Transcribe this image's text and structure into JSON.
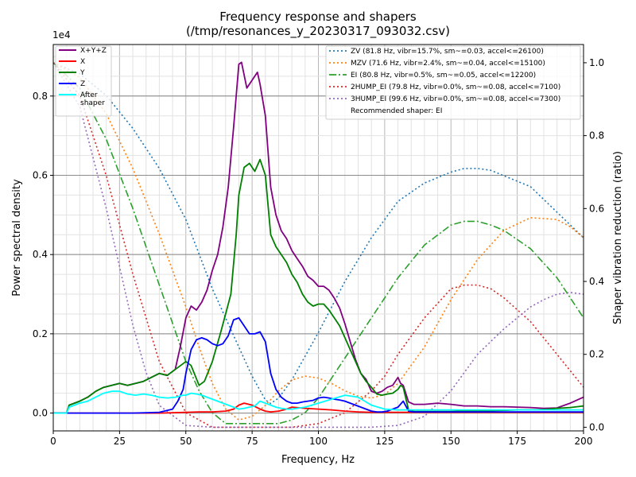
{
  "chart_data": {
    "type": "line",
    "title": "Frequency response and shapers",
    "subtitle": "(/tmp/resonances_y_20230317_093032.csv)",
    "xlabel": "Frequency, Hz",
    "ylabel": "Power spectral density",
    "y2label": "Shaper vibration reduction (ratio)",
    "y_offset_label": "1e4",
    "xlim": [
      0,
      200
    ],
    "ylim": [
      -0.045,
      0.93
    ],
    "y2lim": [
      -0.01,
      1.05
    ],
    "x_ticks": [
      0,
      25,
      50,
      75,
      100,
      125,
      150,
      175,
      200
    ],
    "y_ticks": [
      0.0,
      0.2,
      0.4,
      0.6,
      0.8
    ],
    "y_tick_labels": [
      "0.0",
      "0.2",
      "0.4",
      "0.6",
      "0.8"
    ],
    "y2_ticks": [
      0.0,
      0.2,
      0.4,
      0.6,
      0.8,
      1.0
    ],
    "y2_tick_labels": [
      "0.0",
      "0.2",
      "0.4",
      "0.6",
      "0.8",
      "1.0"
    ],
    "grid": true,
    "legend_left_placement": "top-left",
    "legend_right_placement": "top-right",
    "recommended_text": "Recommended shaper: EI",
    "psd_series": [
      {
        "name": "X+Y+Z",
        "color": "#800080",
        "dash": "solid",
        "x": [
          0,
          5,
          6,
          8,
          10,
          13,
          16,
          19,
          22,
          25,
          28,
          31,
          34,
          37,
          40,
          43,
          46,
          48,
          50,
          52,
          54,
          56,
          58,
          60,
          62,
          64,
          66,
          68,
          70,
          71,
          73,
          75,
          77,
          78,
          80,
          82,
          84,
          86,
          88,
          90,
          92,
          94,
          96,
          98,
          100,
          102,
          104,
          106,
          108,
          110,
          112,
          114,
          116,
          118,
          120,
          122,
          124,
          126,
          128,
          130,
          131,
          132,
          134,
          136,
          140,
          145,
          150,
          155,
          160,
          165,
          170,
          175,
          180,
          185,
          190,
          195,
          200
        ],
        "y": [
          0.0,
          0.0,
          0.02,
          0.025,
          0.03,
          0.04,
          0.055,
          0.065,
          0.07,
          0.075,
          0.07,
          0.075,
          0.08,
          0.09,
          0.1,
          0.095,
          0.11,
          0.17,
          0.24,
          0.27,
          0.26,
          0.28,
          0.31,
          0.36,
          0.4,
          0.47,
          0.57,
          0.72,
          0.88,
          0.885,
          0.82,
          0.84,
          0.86,
          0.83,
          0.75,
          0.57,
          0.5,
          0.46,
          0.44,
          0.41,
          0.39,
          0.37,
          0.345,
          0.335,
          0.32,
          0.32,
          0.31,
          0.29,
          0.265,
          0.225,
          0.18,
          0.135,
          0.1,
          0.085,
          0.055,
          0.05,
          0.055,
          0.065,
          0.07,
          0.09,
          0.075,
          0.07,
          0.028,
          0.022,
          0.022,
          0.025,
          0.022,
          0.018,
          0.018,
          0.016,
          0.016,
          0.015,
          0.014,
          0.012,
          0.013,
          0.025,
          0.04
        ]
      },
      {
        "name": "X",
        "color": "#ff0000",
        "dash": "solid",
        "x": [
          0,
          5,
          10,
          20,
          30,
          40,
          45,
          50,
          55,
          60,
          65,
          68,
          70,
          72,
          75,
          78,
          80,
          82,
          85,
          88,
          90,
          95,
          100,
          105,
          110,
          115,
          120,
          125,
          130,
          135,
          140,
          150,
          160,
          170,
          180,
          190,
          200
        ],
        "y": [
          0.0,
          0.0,
          0.0,
          0.0,
          0.0,
          0.0,
          0.001,
          0.002,
          0.003,
          0.003,
          0.005,
          0.01,
          0.02,
          0.025,
          0.02,
          0.01,
          0.005,
          0.003,
          0.005,
          0.01,
          0.015,
          0.012,
          0.01,
          0.008,
          0.005,
          0.003,
          0.002,
          0.002,
          0.002,
          0.002,
          0.002,
          0.002,
          0.002,
          0.002,
          0.002,
          0.002,
          0.002
        ]
      },
      {
        "name": "Y",
        "color": "#008000",
        "dash": "solid",
        "x": [
          0,
          5,
          6,
          8,
          10,
          13,
          16,
          19,
          22,
          25,
          28,
          31,
          34,
          37,
          40,
          43,
          46,
          48,
          50,
          52,
          55,
          57,
          60,
          63,
          65,
          67,
          69,
          70,
          72,
          74,
          76,
          78,
          80,
          82,
          84,
          86,
          88,
          90,
          92,
          94,
          96,
          98,
          100,
          102,
          104,
          106,
          108,
          110,
          112,
          114,
          116,
          118,
          120,
          122,
          124,
          126,
          128,
          130,
          131,
          132,
          134,
          136,
          140,
          145,
          150,
          155,
          160,
          165,
          170,
          175,
          180,
          185,
          190,
          195,
          200
        ],
        "y": [
          0.0,
          0.0,
          0.02,
          0.025,
          0.03,
          0.04,
          0.055,
          0.065,
          0.07,
          0.075,
          0.07,
          0.075,
          0.08,
          0.09,
          0.1,
          0.095,
          0.11,
          0.12,
          0.13,
          0.12,
          0.07,
          0.08,
          0.13,
          0.2,
          0.25,
          0.3,
          0.45,
          0.55,
          0.62,
          0.63,
          0.61,
          0.64,
          0.6,
          0.45,
          0.42,
          0.4,
          0.38,
          0.35,
          0.33,
          0.3,
          0.28,
          0.27,
          0.275,
          0.275,
          0.26,
          0.24,
          0.22,
          0.19,
          0.16,
          0.13,
          0.1,
          0.08,
          0.065,
          0.048,
          0.045,
          0.048,
          0.05,
          0.06,
          0.07,
          0.065,
          0.008,
          0.004,
          0.004,
          0.004,
          0.004,
          0.005,
          0.006,
          0.006,
          0.007,
          0.008,
          0.008,
          0.009,
          0.012,
          0.014,
          0.018
        ]
      },
      {
        "name": "Z",
        "color": "#0000ff",
        "dash": "solid",
        "x": [
          0,
          5,
          10,
          20,
          30,
          40,
          45,
          47,
          49,
          50,
          52,
          54,
          56,
          58,
          60,
          62,
          64,
          66,
          68,
          70,
          72,
          74,
          76,
          78,
          80,
          82,
          84,
          86,
          88,
          90,
          92,
          94,
          96,
          98,
          100,
          102,
          104,
          106,
          108,
          110,
          112,
          114,
          116,
          118,
          120,
          122,
          124,
          126,
          128,
          130,
          132,
          134,
          136,
          140,
          150,
          160,
          170,
          180,
          190,
          200
        ],
        "y": [
          0.0,
          0.0,
          0.0,
          0.0,
          0.0,
          0.002,
          0.01,
          0.03,
          0.06,
          0.1,
          0.16,
          0.185,
          0.19,
          0.185,
          0.175,
          0.17,
          0.175,
          0.195,
          0.235,
          0.24,
          0.22,
          0.2,
          0.2,
          0.205,
          0.18,
          0.1,
          0.06,
          0.04,
          0.03,
          0.025,
          0.025,
          0.028,
          0.03,
          0.032,
          0.038,
          0.04,
          0.038,
          0.035,
          0.033,
          0.03,
          0.025,
          0.02,
          0.015,
          0.01,
          0.005,
          0.003,
          0.003,
          0.005,
          0.01,
          0.015,
          0.03,
          0.005,
          0.003,
          0.003,
          0.003,
          0.003,
          0.003,
          0.003,
          0.003,
          0.003
        ]
      },
      {
        "name": "After\nshaper",
        "color": "#00ffff",
        "dash": "solid",
        "x": [
          0,
          5,
          6,
          8,
          10,
          13,
          16,
          19,
          22,
          25,
          28,
          31,
          34,
          37,
          40,
          43,
          46,
          49,
          50,
          52,
          54,
          56,
          58,
          60,
          62,
          64,
          66,
          68,
          70,
          72,
          74,
          76,
          78,
          80,
          82,
          84,
          86,
          88,
          90,
          95,
          100,
          105,
          110,
          115,
          120,
          125,
          130,
          135,
          140,
          150,
          160,
          170,
          180,
          190,
          200
        ],
        "y": [
          0.0,
          0.0,
          0.015,
          0.02,
          0.025,
          0.03,
          0.04,
          0.05,
          0.055,
          0.055,
          0.048,
          0.045,
          0.048,
          0.045,
          0.04,
          0.038,
          0.04,
          0.045,
          0.045,
          0.05,
          0.048,
          0.045,
          0.04,
          0.035,
          0.03,
          0.025,
          0.02,
          0.015,
          0.01,
          0.012,
          0.015,
          0.018,
          0.03,
          0.025,
          0.02,
          0.015,
          0.012,
          0.01,
          0.01,
          0.015,
          0.025,
          0.035,
          0.045,
          0.04,
          0.02,
          0.01,
          0.008,
          0.008,
          0.008,
          0.008,
          0.008,
          0.008,
          0.008,
          0.008,
          0.008
        ]
      }
    ],
    "shaper_series": [
      {
        "name": "ZV (81.8 Hz, vibr=15.7%, sm~=0.03, accel<=26100)",
        "color": "#1f77b4",
        "dash": "dotted",
        "x": [
          0,
          10,
          20,
          30,
          40,
          50,
          60,
          70,
          75,
          80,
          82,
          85,
          90,
          100,
          110,
          120,
          130,
          140,
          150,
          155,
          160,
          165,
          170,
          180,
          190,
          200
        ],
        "y": [
          1.0,
          0.97,
          0.91,
          0.82,
          0.71,
          0.57,
          0.38,
          0.22,
          0.14,
          0.075,
          0.065,
          0.08,
          0.13,
          0.26,
          0.4,
          0.52,
          0.62,
          0.67,
          0.7,
          0.71,
          0.71,
          0.705,
          0.69,
          0.66,
          0.59,
          0.52
        ]
      },
      {
        "name": "MZV (71.6 Hz, vibr=2.4%, sm~=0.04, accel<=15100)",
        "color": "#ff7f0e",
        "dash": "dotted",
        "x": [
          0,
          10,
          20,
          30,
          40,
          50,
          55,
          60,
          65,
          70,
          75,
          80,
          85,
          90,
          95,
          100,
          105,
          110,
          115,
          120,
          125,
          130,
          140,
          150,
          160,
          170,
          180,
          190,
          195,
          200
        ],
        "y": [
          1.0,
          0.96,
          0.86,
          0.71,
          0.53,
          0.33,
          0.22,
          0.12,
          0.05,
          0.02,
          0.03,
          0.06,
          0.1,
          0.13,
          0.14,
          0.135,
          0.12,
          0.1,
          0.085,
          0.08,
          0.09,
          0.12,
          0.22,
          0.35,
          0.46,
          0.54,
          0.575,
          0.57,
          0.55,
          0.52
        ]
      },
      {
        "name": "EI (80.8 Hz, vibr=0.5%, sm~=0.05, accel<=12200)",
        "color": "#2ca02c",
        "dash": "dashdot",
        "x": [
          0,
          10,
          20,
          30,
          40,
          50,
          55,
          60,
          65,
          70,
          75,
          80,
          85,
          90,
          95,
          100,
          110,
          120,
          130,
          140,
          150,
          155,
          160,
          165,
          170,
          180,
          190,
          200
        ],
        "y": [
          1.0,
          0.93,
          0.79,
          0.6,
          0.39,
          0.18,
          0.1,
          0.04,
          0.01,
          0.01,
          0.01,
          0.01,
          0.01,
          0.02,
          0.04,
          0.08,
          0.19,
          0.3,
          0.41,
          0.5,
          0.555,
          0.565,
          0.565,
          0.555,
          0.54,
          0.49,
          0.41,
          0.3
        ]
      },
      {
        "name": "2HUMP_EI (79.8 Hz, vibr=0.0%, sm~=0.08, accel<=7100)",
        "color": "#d62728",
        "dash": "dotted",
        "x": [
          0,
          10,
          20,
          30,
          40,
          50,
          60,
          70,
          80,
          90,
          100,
          110,
          120,
          125,
          130,
          140,
          150,
          155,
          160,
          165,
          170,
          180,
          190,
          200
        ],
        "y": [
          1.0,
          0.91,
          0.69,
          0.42,
          0.18,
          0.04,
          0.0,
          0.0,
          0.0,
          0.0,
          0.01,
          0.04,
          0.1,
          0.14,
          0.2,
          0.3,
          0.38,
          0.39,
          0.39,
          0.38,
          0.355,
          0.29,
          0.2,
          0.11
        ]
      },
      {
        "name": "3HUMP_EI (99.6 Hz, vibr=0.0%, sm~=0.08, accel<=7300)",
        "color": "#9467bd",
        "dash": "dotted",
        "x": [
          0,
          10,
          20,
          30,
          35,
          40,
          50,
          60,
          80,
          100,
          120,
          130,
          140,
          150,
          160,
          170,
          180,
          185,
          190,
          195,
          200
        ],
        "y": [
          1.0,
          0.88,
          0.6,
          0.28,
          0.15,
          0.06,
          0.005,
          0.0,
          0.0,
          0.0,
          0.0,
          0.005,
          0.03,
          0.1,
          0.2,
          0.27,
          0.33,
          0.35,
          0.365,
          0.37,
          0.365
        ]
      }
    ]
  }
}
